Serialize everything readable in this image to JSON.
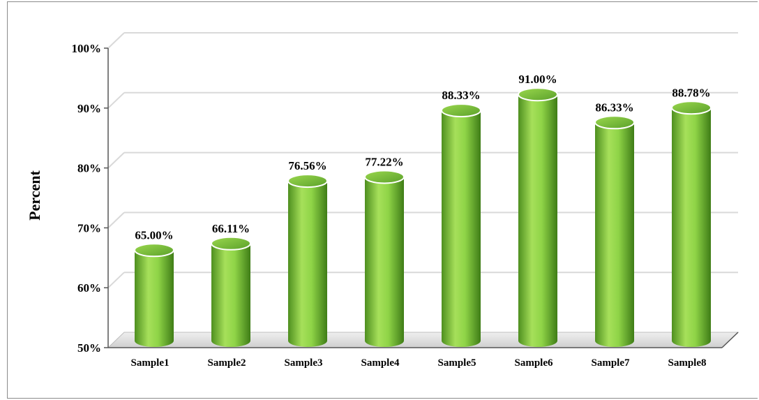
{
  "chart_data": {
    "type": "bar",
    "style": "3d-cylinder",
    "categories": [
      "Sample1",
      "Sample2",
      "Sample3",
      "Sample4",
      "Sample5",
      "Sample6",
      "Sample7",
      "Sample8"
    ],
    "values": [
      65.0,
      66.11,
      76.56,
      77.22,
      88.33,
      91.0,
      86.33,
      88.78
    ],
    "data_labels": [
      "65.00%",
      "66.11%",
      "76.56%",
      "77.22%",
      "88.33%",
      "91.00%",
      "86.33%",
      "88.78%"
    ],
    "title": "",
    "xlabel": "",
    "ylabel": "Percent",
    "ylim": [
      50,
      100
    ],
    "yticks": [
      50,
      60,
      70,
      80,
      90,
      100
    ],
    "ytick_labels": [
      "50%",
      "60%",
      "70%",
      "80%",
      "90%",
      "100%"
    ],
    "grid": true,
    "legend": "none",
    "colors": {
      "bar_light": "#a6e05a",
      "bar_mid": "#7cc43a",
      "bar_dark": "#4e8f1f",
      "gridline": "#d9d9d9",
      "floor": "#d0d0d0"
    }
  }
}
